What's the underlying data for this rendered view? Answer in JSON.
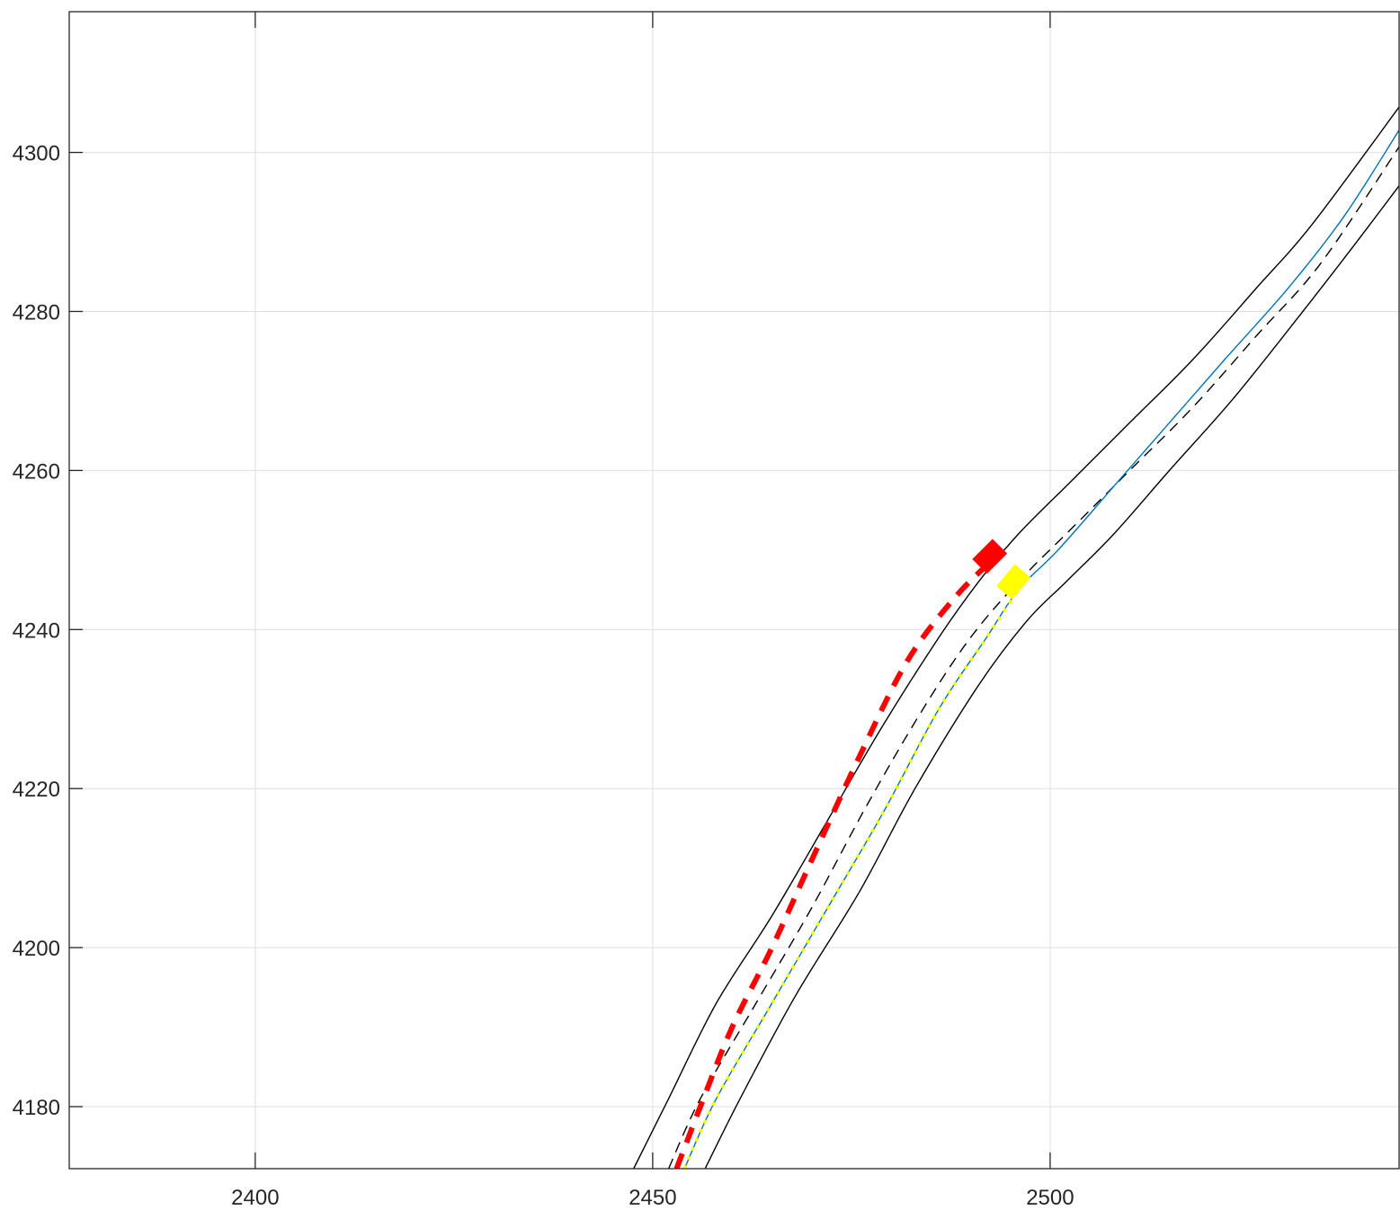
{
  "chart_data": {
    "type": "line",
    "title": "",
    "xlabel": "",
    "ylabel": "",
    "xlim": [
      2376.6,
      2543.9
    ],
    "ylim": [
      4172.2,
      4317.7
    ],
    "grid": true,
    "x_ticks": [
      2400,
      2450,
      2500
    ],
    "y_ticks": [
      4180,
      4200,
      4220,
      4240,
      4260,
      4280,
      4300
    ],
    "x_tick_labels": [
      "2400",
      "2450",
      "2500"
    ],
    "y_tick_labels": [
      "4180",
      "4200",
      "4220",
      "4240",
      "4260",
      "4280",
      "4300"
    ],
    "colors": {
      "road_edge": "#000000",
      "lane_divider": "#000000",
      "reference_path": "#0072BD",
      "red_vehicle": "#FF0000",
      "yellow_vehicle": "#FFFF00",
      "grid": "#DFDFDF",
      "axis": "#262626"
    },
    "series": [
      {
        "role": "road-left-edge",
        "style": "solid",
        "points": [
          [
            2447.6,
            4172.2
          ],
          [
            2452,
            4181
          ],
          [
            2458,
            4193
          ],
          [
            2465,
            4204
          ],
          [
            2472,
            4216
          ],
          [
            2479,
            4228
          ],
          [
            2486,
            4239
          ],
          [
            2491,
            4246
          ],
          [
            2496,
            4252
          ],
          [
            2503,
            4259
          ],
          [
            2510,
            4266
          ],
          [
            2518,
            4274
          ],
          [
            2526,
            4283
          ],
          [
            2533,
            4291
          ],
          [
            2543.9,
            4305.7
          ]
        ]
      },
      {
        "role": "road-right-edge",
        "style": "solid",
        "points": [
          [
            2456.6,
            4172.2
          ],
          [
            2461,
            4181
          ],
          [
            2468,
            4194
          ],
          [
            2476,
            4207
          ],
          [
            2483,
            4220
          ],
          [
            2491,
            4233
          ],
          [
            2497,
            4241
          ],
          [
            2502,
            4246
          ],
          [
            2508,
            4252
          ],
          [
            2515,
            4260
          ],
          [
            2523,
            4269
          ],
          [
            2531,
            4279
          ],
          [
            2538,
            4288
          ],
          [
            2543.9,
            4295.8
          ]
        ]
      },
      {
        "role": "lane-divider",
        "style": "dashed",
        "points": [
          [
            2452,
            4172.2
          ],
          [
            2456,
            4181
          ],
          [
            2463,
            4193
          ],
          [
            2470,
            4205
          ],
          [
            2477,
            4218
          ],
          [
            2484,
            4230
          ],
          [
            2490,
            4239
          ],
          [
            2496,
            4246
          ],
          [
            2503,
            4253
          ],
          [
            2510,
            4260
          ],
          [
            2518,
            4268
          ],
          [
            2526,
            4277
          ],
          [
            2534,
            4286
          ],
          [
            2543.9,
            4300.7
          ]
        ]
      },
      {
        "role": "reference-path",
        "style": "solid",
        "points": [
          [
            2454,
            4172.2
          ],
          [
            2458,
            4181
          ],
          [
            2465,
            4193
          ],
          [
            2472,
            4205
          ],
          [
            2479,
            4217
          ],
          [
            2486,
            4230
          ],
          [
            2492,
            4239
          ],
          [
            2496,
            4245
          ],
          [
            2501,
            4250
          ],
          [
            2508,
            4258
          ],
          [
            2515,
            4266
          ],
          [
            2522,
            4274
          ],
          [
            2530,
            4283
          ],
          [
            2537,
            4292
          ],
          [
            2543.9,
            4302.8
          ]
        ]
      },
      {
        "role": "yellow-vehicle-trajectory",
        "style": "dotted",
        "points": [
          [
            2454,
            4172.2
          ],
          [
            2458,
            4181
          ],
          [
            2465,
            4193
          ],
          [
            2472,
            4205
          ],
          [
            2479,
            4217
          ],
          [
            2486,
            4230
          ],
          [
            2492,
            4239
          ],
          [
            2496,
            4245
          ]
        ]
      },
      {
        "role": "red-vehicle-trajectory",
        "style": "dashed-thick",
        "points": [
          [
            2453,
            4172.2
          ],
          [
            2456,
            4180
          ],
          [
            2460,
            4190
          ],
          [
            2465,
            4200
          ],
          [
            2470,
            4211
          ],
          [
            2476,
            4224
          ],
          [
            2482,
            4236
          ],
          [
            2488,
            4244
          ],
          [
            2493,
            4249
          ]
        ]
      }
    ],
    "vehicles": [
      {
        "role": "red-vehicle",
        "x": 2492.4,
        "y": 4249.2,
        "heading_deg": 45,
        "length": 3.6,
        "width": 2.6
      },
      {
        "role": "yellow-vehicle",
        "x": 2495.4,
        "y": 4246.0,
        "heading_deg": 50,
        "length": 3.6,
        "width": 2.6
      }
    ]
  }
}
